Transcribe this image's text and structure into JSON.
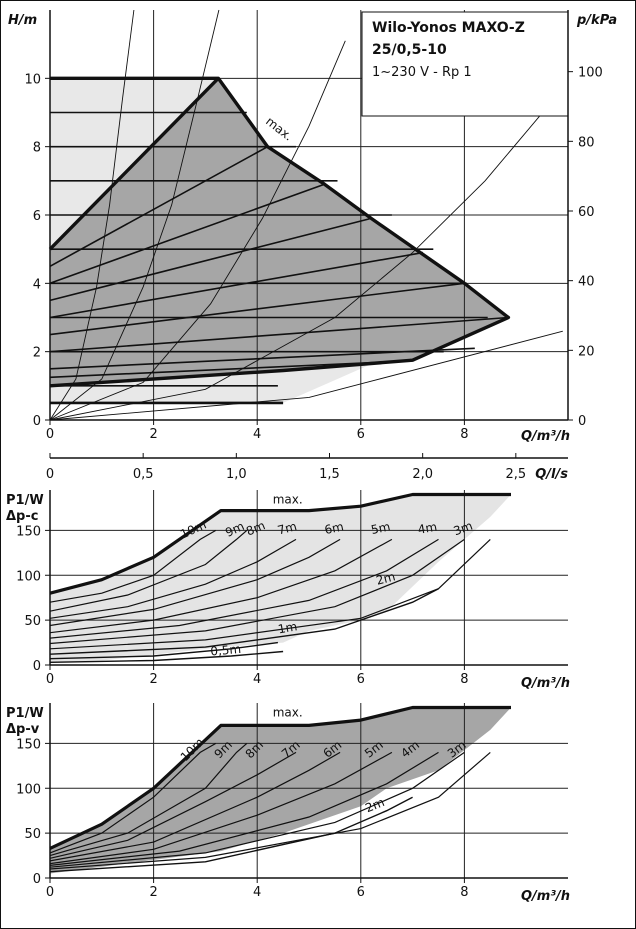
{
  "chart_data": [
    {
      "type": "line",
      "title_lines": [
        "Wilo-Yonos MAXO-Z",
        "25/0,5-10"
      ],
      "subtitle": "1~230 V - Rp 1",
      "ylabel": "H/m",
      "y2label": "p/kPa",
      "xlabel": "Q/m³/h",
      "xlim": [
        0,
        10.0
      ],
      "ylim": [
        0,
        12.0
      ],
      "y2lim": [
        0,
        117.7
      ],
      "x_ticks": [
        "0",
        "2",
        "4",
        "6",
        "8"
      ],
      "y_ticks": [
        "0",
        "2",
        "4",
        "6",
        "8",
        "10"
      ],
      "y2_ticks": [
        "0",
        "20",
        "40",
        "60",
        "80",
        "100"
      ],
      "max_label": "max.",
      "envelope": {
        "x": [
          0,
          0,
          3.25,
          4.2,
          5.3,
          6.2,
          8.0,
          8.85,
          6.3,
          4.5,
          0
        ],
        "y": [
          0.5,
          10,
          10,
          8.0,
          6.9,
          5.9,
          4.0,
          3.0,
          1.7,
          0.5,
          0.5
        ]
      },
      "max_curve": {
        "x": [
          0,
          3.25,
          4.2,
          5.3,
          6.2,
          8.0,
          8.85,
          7.0,
          4.5,
          0
        ],
        "y": [
          10,
          10,
          8.0,
          6.9,
          5.9,
          4.0,
          3.0,
          1.75,
          1.45,
          1.0
        ]
      },
      "dp_c_area": {
        "x": [
          0,
          3.25,
          4.2,
          5.3,
          6.2,
          8.0,
          8.85,
          7.0,
          4.5,
          0
        ],
        "y": [
          5.0,
          10,
          8.0,
          6.9,
          5.9,
          4.0,
          3.0,
          1.75,
          1.45,
          1.0
        ]
      },
      "dp_c_boundary": {
        "x": [
          0,
          3.25
        ],
        "y": [
          5.0,
          10
        ]
      },
      "setpoint_lines": [
        {
          "x": [
            0,
            3.8
          ],
          "y": [
            9.0,
            9.0
          ]
        },
        {
          "x": [
            0,
            4.75
          ],
          "y": [
            8.0,
            8.0
          ]
        },
        {
          "x": [
            0,
            5.55
          ],
          "y": [
            7.0,
            7.0
          ]
        },
        {
          "x": [
            0,
            6.6
          ],
          "y": [
            6.0,
            6.0
          ]
        },
        {
          "x": [
            0,
            7.4
          ],
          "y": [
            5.0,
            5.0
          ]
        },
        {
          "x": [
            0,
            8.05
          ],
          "y": [
            4.0,
            4.0
          ]
        },
        {
          "x": [
            0,
            8.45
          ],
          "y": [
            3.0,
            3.0
          ]
        },
        {
          "x": [
            0,
            7.6
          ],
          "y": [
            2.0,
            2.0
          ]
        },
        {
          "x": [
            0,
            4.4
          ],
          "y": [
            1.0,
            1.0
          ]
        }
      ],
      "dp_v_lines": [
        {
          "x": [
            0,
            4.2
          ],
          "y": [
            4.5,
            8.0
          ]
        },
        {
          "x": [
            0,
            5.3
          ],
          "y": [
            4.0,
            6.9
          ]
        },
        {
          "x": [
            0,
            6.2
          ],
          "y": [
            3.5,
            5.9
          ]
        },
        {
          "x": [
            0,
            7.2
          ],
          "y": [
            3.0,
            4.9
          ]
        },
        {
          "x": [
            0,
            8.0
          ],
          "y": [
            2.5,
            4.0
          ]
        },
        {
          "x": [
            0,
            8.85
          ],
          "y": [
            2.0,
            3.0
          ]
        },
        {
          "x": [
            0,
            8.2
          ],
          "y": [
            1.5,
            2.1
          ]
        },
        {
          "x": [
            0,
            6.5
          ],
          "y": [
            1.25,
            1.7
          ]
        }
      ],
      "system_curves": [
        {
          "x": [
            0,
            0.5,
            0.9,
            1.15,
            1.4,
            1.62
          ],
          "y": [
            0,
            1.2,
            3.9,
            6.3,
            9.4,
            12.0
          ]
        },
        {
          "x": [
            0,
            1.0,
            1.8,
            2.35,
            2.85,
            3.26
          ],
          "y": [
            0,
            1.2,
            3.9,
            6.3,
            9.4,
            12.0
          ]
        },
        {
          "x": [
            0,
            1.8,
            3.1,
            4.1,
            5.0,
            5.7
          ],
          "y": [
            0,
            1.1,
            3.4,
            5.9,
            8.6,
            11.1
          ]
        },
        {
          "x": [
            0,
            3.0,
            5.5,
            7.0,
            8.4,
            9.9
          ],
          "y": [
            0,
            0.9,
            3.0,
            4.9,
            7.0,
            9.7
          ]
        },
        {
          "x": [
            0,
            5.0,
            9.9
          ],
          "y": [
            0,
            0.66,
            2.6
          ]
        }
      ]
    },
    {
      "type": "axis",
      "xlabel": "Q/l/s",
      "xlim": [
        0,
        2.78
      ],
      "x_ticks": [
        0,
        0.5,
        1.0,
        1.5,
        2.0,
        2.5
      ],
      "x_tick_labels": [
        "0",
        "0,5",
        "1,0",
        "1,5",
        "2,0",
        "2,5"
      ]
    },
    {
      "type": "line",
      "ylabel_lines": [
        "P1/W",
        "Δp-c"
      ],
      "xlabel": "Q/m³/h",
      "xlim": [
        0,
        10.0
      ],
      "ylim": [
        0,
        195
      ],
      "x_ticks": [
        "0",
        "2",
        "4",
        "6",
        "8"
      ],
      "y_ticks": [
        "0",
        "50",
        "100",
        "150"
      ],
      "area": {
        "x": [
          0,
          1.0,
          2.0,
          3.3,
          5.0,
          6.0,
          7.0,
          8.9,
          8.5,
          7.5,
          6.5,
          6.0,
          5.0,
          4.5,
          3.3,
          1.0,
          0
        ],
        "y": [
          80,
          95,
          120,
          172,
          172,
          177,
          190,
          190,
          165,
          115,
          60,
          50,
          38,
          25,
          20,
          5,
          3
        ]
      },
      "max_label": "max.",
      "max_curve": {
        "x": [
          0,
          1.0,
          2.0,
          3.3,
          5.0,
          6.0,
          7.0,
          8.9
        ],
        "y": [
          80,
          95,
          120,
          172,
          172,
          177,
          190,
          190
        ]
      },
      "curves": [
        {
          "label": "10m",
          "x": [
            0,
            1.0,
            2.0,
            2.9,
            3.2
          ],
          "y": [
            70,
            80,
            100,
            140,
            150
          ]
        },
        {
          "label": "9m",
          "x": [
            0,
            1.5,
            3.0,
            3.6,
            3.8
          ],
          "y": [
            60,
            78,
            112,
            140,
            150
          ]
        },
        {
          "label": "8m",
          "x": [
            0,
            1.5,
            3.0,
            4.0,
            4.75
          ],
          "y": [
            52,
            65,
            90,
            115,
            140
          ]
        },
        {
          "label": "7m",
          "x": [
            0,
            2.0,
            4.0,
            5.0,
            5.6
          ],
          "y": [
            44,
            62,
            95,
            120,
            140
          ]
        },
        {
          "label": "6m",
          "x": [
            0,
            2.0,
            4.0,
            5.5,
            6.6
          ],
          "y": [
            36,
            50,
            75,
            105,
            140
          ]
        },
        {
          "label": "5m",
          "x": [
            0,
            2.5,
            5.0,
            6.5,
            7.5
          ],
          "y": [
            30,
            44,
            72,
            105,
            140
          ]
        },
        {
          "label": "4m",
          "x": [
            0,
            3.0,
            5.5,
            7.0,
            8.0
          ],
          "y": [
            24,
            38,
            65,
            100,
            140
          ]
        },
        {
          "label": "3m",
          "x": [
            0,
            3.0,
            6.0,
            7.5,
            8.5
          ],
          "y": [
            18,
            28,
            52,
            85,
            140
          ]
        },
        {
          "label": "2m",
          "x": [
            0,
            3.0,
            5.5,
            7.0,
            7.5
          ],
          "y": [
            12,
            20,
            40,
            70,
            85
          ]
        },
        {
          "label": "1m",
          "x": [
            0,
            2.0,
            3.5,
            4.4
          ],
          "y": [
            7,
            10,
            18,
            25
          ]
        },
        {
          "label": "0,5m",
          "x": [
            0,
            2.0,
            3.5,
            4.5
          ],
          "y": [
            3,
            5,
            10,
            15
          ]
        }
      ]
    },
    {
      "type": "line",
      "ylabel_lines": [
        "P1/W",
        "Δp-v"
      ],
      "xlabel": "Q/m³/h",
      "xlim": [
        0,
        10.0
      ],
      "ylim": [
        0,
        195
      ],
      "x_ticks": [
        "0",
        "2",
        "4",
        "6",
        "8"
      ],
      "y_ticks": [
        "0",
        "50",
        "100",
        "150"
      ],
      "area": {
        "x": [
          0,
          1.0,
          2.0,
          3.3,
          5.0,
          6.0,
          7.0,
          8.9,
          8.5,
          7.5,
          6.5,
          6.0,
          4.5,
          3.3,
          0
        ],
        "y": [
          33,
          60,
          100,
          170,
          170,
          176,
          190,
          190,
          165,
          120,
          100,
          80,
          50,
          30,
          5
        ]
      },
      "max_label": "max.",
      "max_curve": {
        "x": [
          0,
          1.0,
          2.0,
          3.3,
          5.0,
          6.0,
          7.0,
          8.9
        ],
        "y": [
          33,
          60,
          100,
          170,
          170,
          176,
          190,
          190
        ]
      },
      "curves": [
        {
          "label": "10m",
          "x": [
            0,
            1.0,
            2.0,
            2.9,
            3.2
          ],
          "y": [
            28,
            50,
            90,
            140,
            150
          ]
        },
        {
          "label": "9m",
          "x": [
            0,
            1.5,
            3.0,
            3.6,
            3.8
          ],
          "y": [
            25,
            50,
            100,
            140,
            150
          ]
        },
        {
          "label": "8m",
          "x": [
            0,
            1.5,
            3.0,
            4.0,
            4.75
          ],
          "y": [
            22,
            42,
            85,
            115,
            140
          ]
        },
        {
          "label": "7m",
          "x": [
            0,
            2.0,
            4.0,
            5.0,
            5.6
          ],
          "y": [
            19,
            40,
            90,
            120,
            140
          ]
        },
        {
          "label": "6m",
          "x": [
            0,
            2.0,
            4.0,
            5.5,
            6.6
          ],
          "y": [
            16,
            32,
            70,
            105,
            140
          ]
        },
        {
          "label": "5m",
          "x": [
            0,
            2.5,
            5.0,
            6.5,
            7.5
          ],
          "y": [
            14,
            30,
            68,
            105,
            140
          ]
        },
        {
          "label": "4m",
          "x": [
            0,
            3.0,
            5.5,
            7.0,
            8.0
          ],
          "y": [
            12,
            28,
            62,
            100,
            140
          ]
        },
        {
          "label": "3m",
          "x": [
            0,
            3.0,
            6.0,
            7.5,
            8.5
          ],
          "y": [
            10,
            23,
            55,
            90,
            140
          ]
        },
        {
          "label": "2m",
          "x": [
            0,
            3.0,
            5.5,
            6.5,
            7.0
          ],
          "y": [
            7,
            18,
            50,
            75,
            90
          ]
        }
      ]
    }
  ],
  "colors": {
    "envelope_fill": "#e8e8e8",
    "dpc_fill": "#a6a6a6",
    "power_fill_c": "#e4e4e4",
    "power_fill_v": "#a6a6a6",
    "line": "#111111",
    "grid": "#222222"
  }
}
